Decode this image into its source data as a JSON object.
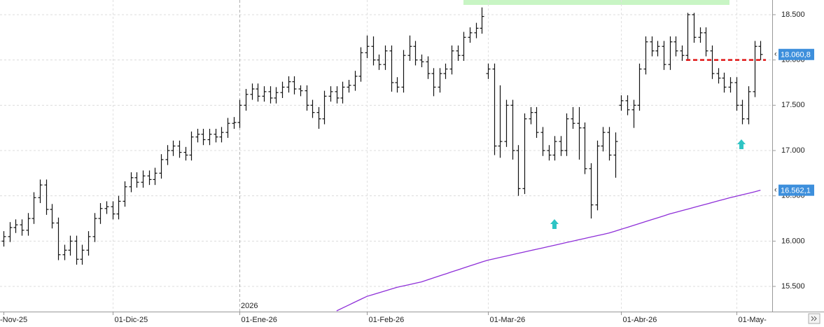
{
  "chart_data": {
    "type": "ohlc",
    "color": "#111111",
    "categories": [
      "-Nov-25",
      null,
      null,
      null,
      null,
      null,
      null,
      null,
      null,
      null,
      null,
      null,
      null,
      null,
      null,
      null,
      null,
      null,
      "01-Dic-25",
      null,
      null,
      null,
      null,
      null,
      null,
      null,
      null,
      null,
      null,
      null,
      null,
      null,
      null,
      null,
      null,
      null,
      null,
      null,
      null,
      "01-Ene-26",
      null,
      null,
      null,
      null,
      null,
      null,
      null,
      null,
      null,
      null,
      null,
      null,
      null,
      null,
      null,
      null,
      null,
      null,
      null,
      null,
      "01-Feb-26",
      null,
      null,
      null,
      null,
      null,
      null,
      null,
      null,
      null,
      null,
      null,
      null,
      null,
      null,
      null,
      null,
      null,
      null,
      null,
      "01-Mar-26",
      null,
      null,
      null,
      null,
      null,
      null,
      null,
      null,
      null,
      null,
      null,
      null,
      null,
      null,
      null,
      null,
      null,
      null,
      null,
      null,
      null,
      "01-Abr-26",
      null,
      null,
      null,
      null,
      null,
      null,
      null,
      null,
      null,
      null,
      null,
      null,
      null,
      null,
      null,
      null,
      null,
      null,
      "01-May-",
      null,
      null,
      null,
      null
    ],
    "open": [
      16000,
      16050,
      16150,
      16180,
      16120,
      16250,
      16480,
      16620,
      16350,
      16200,
      15850,
      15900,
      16000,
      15800,
      15900,
      16050,
      16250,
      16360,
      16380,
      16300,
      16440,
      16600,
      16700,
      16650,
      16720,
      16680,
      16750,
      16900,
      17000,
      17050,
      16980,
      16950,
      17150,
      17180,
      17120,
      17180,
      17150,
      17200,
      17300,
      17310,
      17500,
      17620,
      17680,
      17600,
      17650,
      17580,
      17640,
      17700,
      17760,
      17680,
      17660,
      17500,
      17420,
      17350,
      17600,
      17650,
      17580,
      17700,
      17720,
      17820,
      18080,
      18150,
      18000,
      17950,
      18100,
      17750,
      17700,
      18050,
      18150,
      18000,
      17980,
      17850,
      17700,
      17850,
      17900,
      18100,
      18050,
      18250,
      18300,
      18350,
      17850,
      17900,
      17050,
      17100,
      17500,
      17000,
      16580,
      17350,
      17420,
      17200,
      17000,
      16950,
      17100,
      17000,
      17350,
      17300,
      17250,
      16800,
      16400,
      17050,
      17200,
      16950,
      17500,
      17550,
      17450,
      17500,
      17900,
      18200,
      18100,
      18150,
      17950,
      18200,
      18100,
      18050,
      18500,
      18250,
      18300,
      18100,
      17850,
      17800,
      17700,
      17750,
      17500,
      17350,
      17650,
      18150
    ],
    "high": [
      16110,
      16210,
      16240,
      16240,
      16310,
      16540,
      16680,
      16680,
      16410,
      16260,
      15960,
      16060,
      16060,
      15960,
      16110,
      16310,
      16420,
      16440,
      16440,
      16500,
      16660,
      16760,
      16760,
      16780,
      16780,
      16810,
      16960,
      17060,
      17110,
      17110,
      17040,
      17210,
      17240,
      17240,
      17240,
      17240,
      17260,
      17360,
      17370,
      17560,
      17680,
      17740,
      17740,
      17710,
      17710,
      17700,
      17760,
      17820,
      17820,
      17720,
      17720,
      17560,
      17480,
      17660,
      17710,
      17710,
      17760,
      17780,
      17880,
      18140,
      18270,
      18260,
      18060,
      18160,
      18160,
      17810,
      18110,
      18270,
      18210,
      18060,
      18040,
      17910,
      17910,
      17960,
      18160,
      18160,
      18310,
      18360,
      18410,
      18580,
      17960,
      17960,
      17720,
      17560,
      17560,
      17060,
      17410,
      17480,
      17480,
      17260,
      17060,
      17160,
      17160,
      17410,
      17480,
      17480,
      17310,
      16860,
      17110,
      17260,
      17260,
      17200,
      17610,
      17610,
      17560,
      17960,
      18260,
      18260,
      18210,
      18210,
      18260,
      18260,
      18160,
      18520,
      18520,
      18360,
      18360,
      18160,
      17910,
      17860,
      17810,
      17810,
      17560,
      17710,
      18210,
      18210
    ],
    "low": [
      15940,
      15990,
      16090,
      16060,
      16060,
      16190,
      16420,
      16290,
      16140,
      15790,
      15790,
      15840,
      15740,
      15740,
      15840,
      15990,
      16190,
      16300,
      16240,
      16240,
      16380,
      16540,
      16590,
      16590,
      16620,
      16620,
      16690,
      16840,
      16940,
      16920,
      16890,
      16890,
      17090,
      17060,
      17060,
      17090,
      17090,
      17140,
      17240,
      17250,
      17440,
      17560,
      17540,
      17540,
      17520,
      17520,
      17580,
      17640,
      17620,
      17600,
      17440,
      17360,
      17240,
      17290,
      17540,
      17520,
      17520,
      17640,
      17660,
      17760,
      18020,
      17940,
      17890,
      17890,
      17650,
      17640,
      17640,
      17990,
      17940,
      17920,
      17790,
      17600,
      17640,
      17790,
      17840,
      17990,
      17990,
      18190,
      18240,
      18290,
      17790,
      16950,
      16920,
      17040,
      16900,
      16500,
      16520,
      17290,
      17140,
      16940,
      16890,
      16890,
      16940,
      16940,
      17240,
      16900,
      16740,
      16250,
      16340,
      16990,
      16890,
      16700,
      17440,
      17390,
      17250,
      17440,
      17840,
      18040,
      18040,
      17890,
      17890,
      18040,
      17990,
      17990,
      18190,
      18190,
      18040,
      17790,
      17740,
      17640,
      17640,
      17440,
      17290,
      17290,
      17590,
      18000
    ],
    "close": [
      16050,
      16150,
      16180,
      16120,
      16250,
      16480,
      16620,
      16350,
      16200,
      15850,
      15900,
      16000,
      15800,
      15900,
      16050,
      16250,
      16360,
      16380,
      16300,
      16440,
      16600,
      16700,
      16650,
      16720,
      16680,
      16750,
      16900,
      17000,
      17050,
      16980,
      16950,
      17150,
      17180,
      17120,
      17180,
      17150,
      17200,
      17300,
      17310,
      17500,
      17620,
      17680,
      17600,
      17650,
      17580,
      17640,
      17700,
      17760,
      17680,
      17660,
      17500,
      17420,
      17350,
      17600,
      17650,
      17580,
      17700,
      17720,
      17820,
      18080,
      18150,
      18000,
      17950,
      18100,
      17750,
      17700,
      18050,
      18150,
      18000,
      17980,
      17850,
      17700,
      17850,
      17900,
      18100,
      18050,
      18250,
      18300,
      18350,
      18480,
      17900,
      17050,
      17100,
      17500,
      17000,
      16580,
      17350,
      17420,
      17200,
      17000,
      16950,
      17100,
      17000,
      17350,
      17300,
      17250,
      16800,
      16400,
      17050,
      17200,
      16950,
      17100,
      17550,
      17450,
      17500,
      17900,
      18200,
      18100,
      18150,
      17950,
      18200,
      18100,
      18050,
      18500,
      18250,
      18300,
      18100,
      17850,
      17800,
      17700,
      17750,
      17500,
      17350,
      17650,
      18150,
      18060.8
    ],
    "close_tag": {
      "value": 18060.8,
      "label": "18.060,8",
      "color": "#3d8fdc"
    },
    "moving_average": {
      "color": "#8e2fd8",
      "values": [
        null,
        null,
        null,
        null,
        null,
        null,
        null,
        null,
        null,
        null,
        null,
        null,
        null,
        null,
        null,
        null,
        null,
        null,
        null,
        null,
        null,
        null,
        null,
        null,
        null,
        null,
        null,
        null,
        null,
        null,
        null,
        null,
        null,
        null,
        null,
        null,
        null,
        null,
        null,
        null,
        null,
        null,
        null,
        null,
        null,
        null,
        null,
        null,
        null,
        null,
        null,
        null,
        null,
        null,
        null,
        15230,
        15262,
        15294,
        15326,
        15358,
        15390,
        15410,
        15430,
        15450,
        15470,
        15490,
        15505,
        15520,
        15535,
        15550,
        15572,
        15594,
        15616,
        15638,
        15660,
        15682,
        15704,
        15726,
        15748,
        15770,
        15790,
        15805,
        15820,
        15835,
        15850,
        15865,
        15880,
        15895,
        15910,
        15925,
        15940,
        15955,
        15970,
        15985,
        16000,
        16015,
        16030,
        16045,
        16060,
        16075,
        16090,
        16110,
        16131,
        16152,
        16173,
        16194,
        16215,
        16236,
        16257,
        16278,
        16300,
        16318,
        16336,
        16354,
        16372,
        16390,
        16408,
        16426,
        16444,
        16462,
        16480,
        16496,
        16512,
        16528,
        16544,
        16562.1
      ],
      "tag": {
        "value": 16562.1,
        "label": "16.562,1",
        "color": "#3d8fdc"
      }
    },
    "ref_line": {
      "value": 18000,
      "color": "#e01515"
    },
    "year_label": "2026",
    "ylim": [
      15222,
      18662
    ],
    "yticks": [
      {
        "value": 18500,
        "label": "18.500"
      },
      {
        "value": 18000,
        "label": "18.000"
      },
      {
        "value": 17500,
        "label": "17.500"
      },
      {
        "value": 17000,
        "label": "17.000"
      },
      {
        "value": 16500,
        "label": "16.500"
      },
      {
        "value": 16000,
        "label": "16.000"
      },
      {
        "value": 15500,
        "label": "15.500"
      }
    ],
    "grid": true
  }
}
